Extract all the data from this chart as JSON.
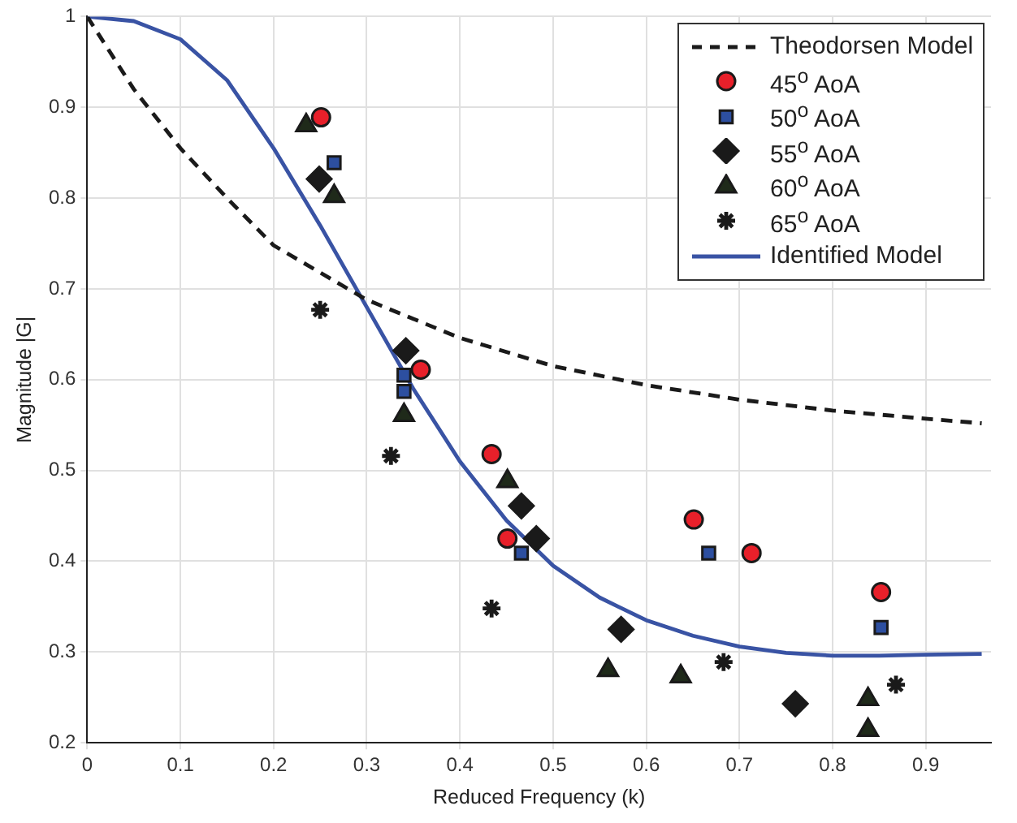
{
  "chart_data": {
    "type": "scatter",
    "xlabel": "Reduced Frequency (k)",
    "ylabel": "Magnitude |G|",
    "xlim": [
      0,
      0.97
    ],
    "ylim": [
      0.2,
      1
    ],
    "xticks": [
      0,
      0.1,
      0.2,
      0.3,
      0.4,
      0.5,
      0.6,
      0.7,
      0.8,
      0.9
    ],
    "yticks": [
      0.2,
      0.3,
      0.4,
      0.5,
      0.6,
      0.7,
      0.8,
      0.9,
      1
    ],
    "grid": true,
    "legend": "top right",
    "series": [
      {
        "name": "Theodorsen Model",
        "type": "line",
        "marker": "none",
        "line_style": "dashed",
        "color": "#1a1a1a",
        "x": [
          0,
          0.05,
          0.1,
          0.15,
          0.2,
          0.3,
          0.4,
          0.5,
          0.6,
          0.7,
          0.8,
          0.9,
          0.96
        ],
        "values": [
          1,
          0.92,
          0.855,
          0.8,
          0.748,
          0.688,
          0.646,
          0.615,
          0.594,
          0.578,
          0.566,
          0.557,
          0.552
        ]
      },
      {
        "name": "45$^{o}$ AoA",
        "type": "scatter",
        "marker": "circle",
        "color": "#e8202a",
        "x": [
          0.251,
          0.358,
          0.434,
          0.451,
          0.651,
          0.713,
          0.852
        ],
        "values": [
          0.889,
          0.611,
          0.518,
          0.425,
          0.446,
          0.409,
          0.366
        ]
      },
      {
        "name": "50$^{o}$ AoA",
        "type": "scatter",
        "marker": "square",
        "color": "#2d4fa0",
        "x": [
          0.265,
          0.34,
          0.34,
          0.466,
          0.667,
          0.852
        ],
        "values": [
          0.839,
          0.605,
          0.587,
          0.409,
          0.409,
          0.327
        ]
      },
      {
        "name": "55$^{o}$ AoA",
        "type": "scatter",
        "marker": "diamond",
        "color": "#1a1a1a",
        "x": [
          0.249,
          0.342,
          0.466,
          0.482,
          0.573,
          0.76
        ],
        "values": [
          0.821,
          0.632,
          0.461,
          0.425,
          0.325,
          0.243
        ]
      },
      {
        "name": "60$^{o}$ AoA",
        "type": "scatter",
        "marker": "triangle",
        "color": "#1f2a1a",
        "x": [
          0.235,
          0.265,
          0.34,
          0.451,
          0.559,
          0.637,
          0.838,
          0.838
        ],
        "values": [
          0.88,
          0.802,
          0.561,
          0.488,
          0.28,
          0.273,
          0.248,
          0.214
        ]
      },
      {
        "name": "65$^{o}$ AoA",
        "type": "scatter",
        "marker": "cross",
        "color": "#1a1a1a",
        "x": [
          0.25,
          0.326,
          0.434,
          0.683,
          0.868
        ],
        "values": [
          0.677,
          0.516,
          0.348,
          0.289,
          0.264
        ]
      },
      {
        "name": "Identified Model",
        "type": "line",
        "marker": "none",
        "line_style": "solid",
        "color": "#3953a4",
        "x": [
          0,
          0.05,
          0.1,
          0.15,
          0.2,
          0.25,
          0.3,
          0.35,
          0.4,
          0.45,
          0.5,
          0.55,
          0.6,
          0.65,
          0.7,
          0.75,
          0.8,
          0.85,
          0.9,
          0.96
        ],
        "values": [
          1,
          0.995,
          0.975,
          0.93,
          0.855,
          0.77,
          0.68,
          0.59,
          0.51,
          0.445,
          0.395,
          0.36,
          0.335,
          0.318,
          0.306,
          0.299,
          0.296,
          0.296,
          0.297,
          0.298
        ]
      }
    ]
  }
}
